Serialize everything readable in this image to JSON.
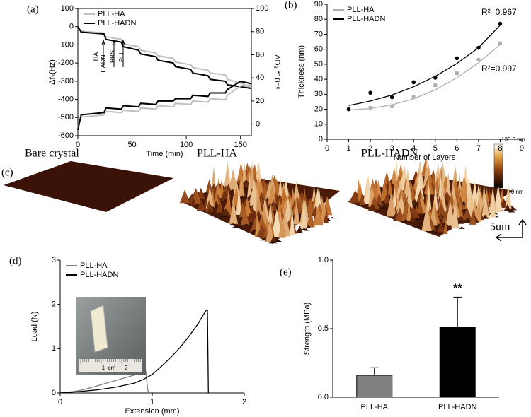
{
  "chart_data": [
    {
      "type": "line",
      "label": "(a)",
      "x_label": "Time (min)",
      "y_label": "Δf₃(Hz)",
      "y2_label": "ΔD₃ *10⁻⁶",
      "xlim": [
        0,
        160
      ],
      "xticks": [
        0,
        50,
        100,
        150
      ],
      "ylim": [
        -600,
        100
      ],
      "yticks": [
        -600,
        -500,
        -400,
        -300,
        -200,
        -100,
        0,
        100
      ],
      "y2lim": [
        -10,
        100
      ],
      "y2ticks": [
        0,
        20,
        40,
        60,
        80,
        100
      ],
      "legend": "upper left",
      "annotations": [
        "HA",
        "HADN",
        "PBS",
        "PLL"
      ],
      "x": [
        0,
        3,
        24,
        26,
        40,
        42,
        56,
        58,
        72,
        74,
        88,
        90,
        104,
        106,
        120,
        122,
        136,
        138,
        150,
        160
      ],
      "series": [
        {
          "name": "PLL-HA",
          "color": "#c0c0c0",
          "values": [
            0,
            -25,
            -35,
            -55,
            -70,
            -95,
            -110,
            -130,
            -145,
            -160,
            -175,
            -195,
            -210,
            -225,
            -240,
            -255,
            -265,
            -290,
            -310,
            -335
          ]
        },
        {
          "name": "PLL-HADN",
          "color": "#000000",
          "values": [
            0,
            -30,
            -40,
            -70,
            -85,
            -110,
            -130,
            -150,
            -165,
            -185,
            -200,
            -220,
            -235,
            -255,
            -270,
            -290,
            -300,
            -320,
            -330,
            -340
          ]
        },
        {
          "name": null,
          "color": "#c0c0c0",
          "axis": "y2",
          "values": [
            -3,
            6,
            8,
            11,
            10,
            12,
            11,
            14,
            13,
            16,
            15,
            18,
            17,
            20,
            19,
            22,
            21,
            25,
            33,
            34
          ]
        },
        {
          "name": null,
          "color": "#000000",
          "axis": "y2",
          "values": [
            -5,
            8,
            10,
            14,
            13,
            16,
            15,
            18,
            17,
            20,
            20,
            22,
            22,
            25,
            24,
            27,
            27,
            30,
            37,
            35
          ]
        }
      ]
    },
    {
      "type": "scatter",
      "label": "(b)",
      "x_label": "Number of Layers",
      "y_label": "Thickness (nm)",
      "xlim": [
        0,
        9
      ],
      "xticks": [
        0,
        1,
        2,
        3,
        4,
        5,
        6,
        7,
        8,
        9
      ],
      "ylim": [
        0,
        90
      ],
      "yticks": [
        0,
        10,
        20,
        30,
        40,
        50,
        60,
        70,
        80,
        90
      ],
      "legend": "upper left",
      "annotations": [
        "R²=0.967",
        "R²=0.997"
      ],
      "x": [
        1,
        2,
        3,
        4,
        5,
        6,
        7,
        8
      ],
      "series": [
        {
          "name": "PLL-HA",
          "color": "#b0b0b0",
          "marker": "square",
          "values": [
            20,
            21,
            22,
            28,
            36,
            44,
            53,
            64
          ],
          "fit": [
            19.5,
            20.5,
            23,
            27,
            33,
            41,
            51,
            63
          ]
        },
        {
          "name": "PLL-HADN",
          "color": "#000000",
          "marker": "circle",
          "values": [
            20,
            31,
            28,
            38,
            41,
            54,
            61,
            77
          ],
          "fit": [
            22.5,
            25.5,
            29.5,
            35,
            42,
            50.5,
            61,
            76
          ]
        }
      ]
    },
    {
      "type": "line",
      "label": "(d)",
      "x_label": "Extension (mm)",
      "y_label": "Load (N)",
      "xlim": [
        0,
        2
      ],
      "xticks": [
        0,
        1,
        2
      ],
      "ylim": [
        0,
        3
      ],
      "yticks": [
        0,
        1,
        2,
        3
      ],
      "legend": "upper left",
      "inset_labels": [
        "1",
        "cm",
        "2"
      ],
      "series": [
        {
          "name": "PLL-HA",
          "color": "#808080",
          "x": [
            0,
            0.1,
            0.2,
            0.3,
            0.4,
            0.5,
            0.6,
            0.7,
            0.8,
            0.9,
            0.93,
            0.95,
            0.96
          ],
          "values": [
            0,
            0.02,
            0.05,
            0.1,
            0.16,
            0.22,
            0.28,
            0.34,
            0.4,
            0.46,
            0.5,
            0.1,
            0
          ]
        },
        {
          "name": "PLL-HADN",
          "color": "#000000",
          "x": [
            0,
            0.2,
            0.4,
            0.6,
            0.8,
            0.9,
            1.0,
            1.1,
            1.2,
            1.3,
            1.4,
            1.5,
            1.58,
            1.6,
            1.61
          ],
          "values": [
            0,
            0.03,
            0.07,
            0.13,
            0.22,
            0.3,
            0.42,
            0.6,
            0.8,
            1.02,
            1.28,
            1.57,
            1.85,
            1.87,
            0
          ]
        }
      ]
    },
    {
      "type": "bar",
      "label": "(e)",
      "y_label": "Strength (MPa)",
      "ylim": [
        0,
        1
      ],
      "yticks": [
        {
          "value": 0,
          "label": "0.0"
        },
        {
          "value": 0.5,
          "label": "0.5"
        },
        {
          "value": 1,
          "label": "1.0"
        }
      ],
      "categories": [
        "PLL-HA",
        "PLL-HADN"
      ],
      "values": [
        0.16,
        0.51
      ],
      "errors": [
        0.055,
        0.22
      ],
      "colors": [
        "#808080",
        "#000000"
      ],
      "annotations": [
        "**"
      ]
    }
  ],
  "afm": {
    "label": "(c)",
    "titles": [
      "Bare crystal",
      "PLL-HA",
      "PLL-HADN"
    ],
    "colorbar_max": "130.0 nm",
    "colorbar_min": "-80.0 nm",
    "scale": "5um"
  }
}
